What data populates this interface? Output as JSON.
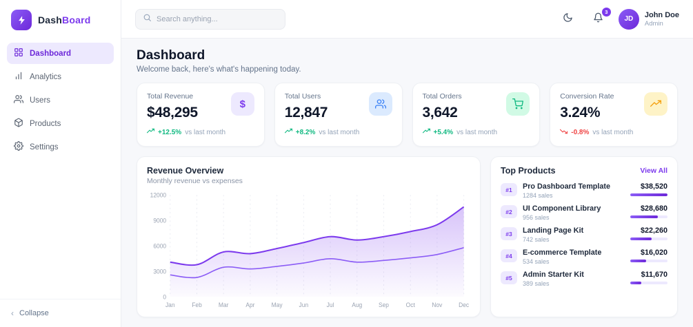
{
  "app": {
    "brand_primary": "Dash",
    "brand_accent": "Board",
    "accent_color": "#7c3aed"
  },
  "sidebar": {
    "items": [
      {
        "label": "Dashboard",
        "icon": "grid-icon",
        "active": true
      },
      {
        "label": "Analytics",
        "icon": "bar-chart-icon",
        "active": false
      },
      {
        "label": "Users",
        "icon": "users-icon",
        "active": false
      },
      {
        "label": "Products",
        "icon": "package-icon",
        "active": false
      },
      {
        "label": "Settings",
        "icon": "gear-icon",
        "active": false
      }
    ],
    "collapse_label": "Collapse"
  },
  "header": {
    "search_placeholder": "Search anything...",
    "notification_count": "3",
    "icons": [
      "moon-icon",
      "bell-icon"
    ],
    "user": {
      "name": "John Doe",
      "role": "Admin",
      "initials": "JD"
    }
  },
  "page": {
    "title": "Dashboard",
    "subtitle": "Welcome back, here's what's happening today."
  },
  "stats": [
    {
      "label": "Total Revenue",
      "value": "$48,295",
      "change": "+12.5%",
      "direction": "up",
      "suffix": "vs last month",
      "icon": "dollar-icon",
      "icon_bg": "#ede9fe",
      "icon_color": "#7c3aed"
    },
    {
      "label": "Total Users",
      "value": "12,847",
      "change": "+8.2%",
      "direction": "up",
      "suffix": "vs last month",
      "icon": "users-icon",
      "icon_bg": "#dbeafe",
      "icon_color": "#3b82f6"
    },
    {
      "label": "Total Orders",
      "value": "3,642",
      "change": "+5.4%",
      "direction": "up",
      "suffix": "vs last month",
      "icon": "cart-icon",
      "icon_bg": "#d1fae5",
      "icon_color": "#10b981"
    },
    {
      "label": "Conversion Rate",
      "value": "3.24%",
      "change": "-0.8%",
      "direction": "down",
      "suffix": "vs last month",
      "icon": "trend-icon",
      "icon_bg": "#fef3c7",
      "icon_color": "#f59e0b"
    }
  ],
  "chart_card": {
    "title": "Revenue Overview",
    "subtitle": "Monthly revenue vs expenses"
  },
  "chart_data": {
    "type": "area",
    "title": "Revenue Overview",
    "x": [
      "Jan",
      "Feb",
      "Mar",
      "Apr",
      "May",
      "Jun",
      "Jul",
      "Aug",
      "Sep",
      "Oct",
      "Nov",
      "Dec"
    ],
    "series": [
      {
        "name": "Revenue",
        "values": [
          4100,
          3800,
          5300,
          5100,
          5700,
          6400,
          7100,
          6700,
          7100,
          7700,
          8500,
          10600
        ]
      },
      {
        "name": "Expenses",
        "values": [
          2600,
          2300,
          3500,
          3300,
          3600,
          4000,
          4500,
          4100,
          4300,
          4600,
          5000,
          5800
        ]
      }
    ],
    "ylim": [
      0,
      12000
    ],
    "yticks": [
      0,
      3000,
      6000,
      9000,
      12000
    ],
    "colors": [
      "#7c3aed",
      "#8b5cf6"
    ],
    "grid": "vertical-dashed",
    "legend": "none"
  },
  "top_products": {
    "title": "Top Products",
    "view_all_label": "View All",
    "items": [
      {
        "rank": "#1",
        "name": "Pro Dashboard Template",
        "sales": "1284 sales",
        "amount": "$38,520",
        "pct": 100
      },
      {
        "rank": "#2",
        "name": "UI Component Library",
        "sales": "956 sales",
        "amount": "$28,680",
        "pct": 74
      },
      {
        "rank": "#3",
        "name": "Landing Page Kit",
        "sales": "742 sales",
        "amount": "$22,260",
        "pct": 58
      },
      {
        "rank": "#4",
        "name": "E-commerce Template",
        "sales": "534 sales",
        "amount": "$16,020",
        "pct": 42
      },
      {
        "rank": "#5",
        "name": "Admin Starter Kit",
        "sales": "389 sales",
        "amount": "$11,670",
        "pct": 30
      }
    ]
  }
}
